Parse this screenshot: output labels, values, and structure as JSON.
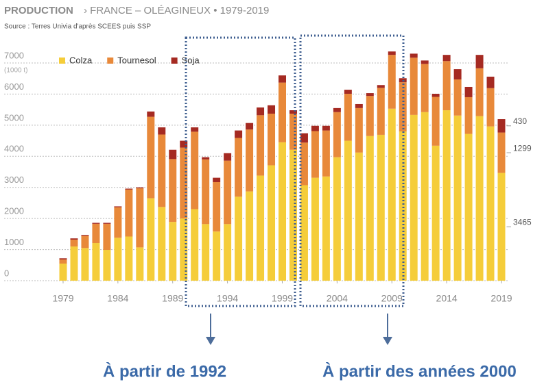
{
  "chart_data": {
    "type": "bar",
    "title_main": "PRODUCTION",
    "title": "› FRANCE – OLÉAGINEUX • 1979-2019",
    "subtitle": "Source : Terres Univia d'après SCEES puis SSP",
    "y_unit": "(1000 t)",
    "stacked": true,
    "categories": [
      1979,
      null,
      null,
      null,
      null,
      1984,
      null,
      null,
      null,
      null,
      1989,
      null,
      null,
      null,
      null,
      1994,
      null,
      null,
      null,
      null,
      1999,
      null,
      null,
      null,
      null,
      2004,
      null,
      null,
      null,
      null,
      2009,
      null,
      null,
      null,
      null,
      2014,
      null,
      null,
      null,
      null,
      2019
    ],
    "series": [
      {
        "name": "Colza",
        "color": "#f5cd3a",
        "values": [
          550,
          1100,
          1050,
          1210,
          990,
          1380,
          1420,
          1070,
          2650,
          2370,
          1890,
          2000,
          2300,
          1820,
          1580,
          1820,
          2700,
          2870,
          3380,
          3710,
          4450,
          4210,
          3070,
          3310,
          3350,
          3970,
          4500,
          4120,
          4650,
          4690,
          5530,
          4800,
          5330,
          5420,
          4340,
          5480,
          5310,
          4720,
          5290,
          4960,
          3465
        ]
      },
      {
        "name": "Tournesol",
        "color": "#e8893a",
        "values": [
          130,
          220,
          390,
          620,
          840,
          980,
          1510,
          1900,
          2620,
          2330,
          2020,
          2280,
          2490,
          2080,
          1590,
          2040,
          1890,
          1990,
          1940,
          1660,
          1920,
          1160,
          1370,
          1500,
          1480,
          1450,
          1510,
          1430,
          1290,
          1510,
          1730,
          1580,
          1840,
          1550,
          1570,
          1580,
          1160,
          1180,
          1540,
          1230,
          1299
        ]
      },
      {
        "name": "Soja",
        "color": "#a52a22",
        "values": [
          40,
          40,
          30,
          30,
          30,
          30,
          30,
          30,
          170,
          230,
          300,
          220,
          140,
          70,
          140,
          240,
          240,
          210,
          250,
          270,
          230,
          110,
          300,
          170,
          150,
          130,
          130,
          130,
          90,
          90,
          110,
          130,
          130,
          110,
          100,
          200,
          330,
          330,
          430,
          370,
          430
        ]
      }
    ],
    "ylim": [
      0,
      7000
    ],
    "yticks": [
      0,
      1000,
      2000,
      3000,
      4000,
      5000,
      6000,
      7000
    ],
    "grid": true,
    "annotations": [
      "À partir de 1992",
      "À partir des années 2000"
    ]
  }
}
